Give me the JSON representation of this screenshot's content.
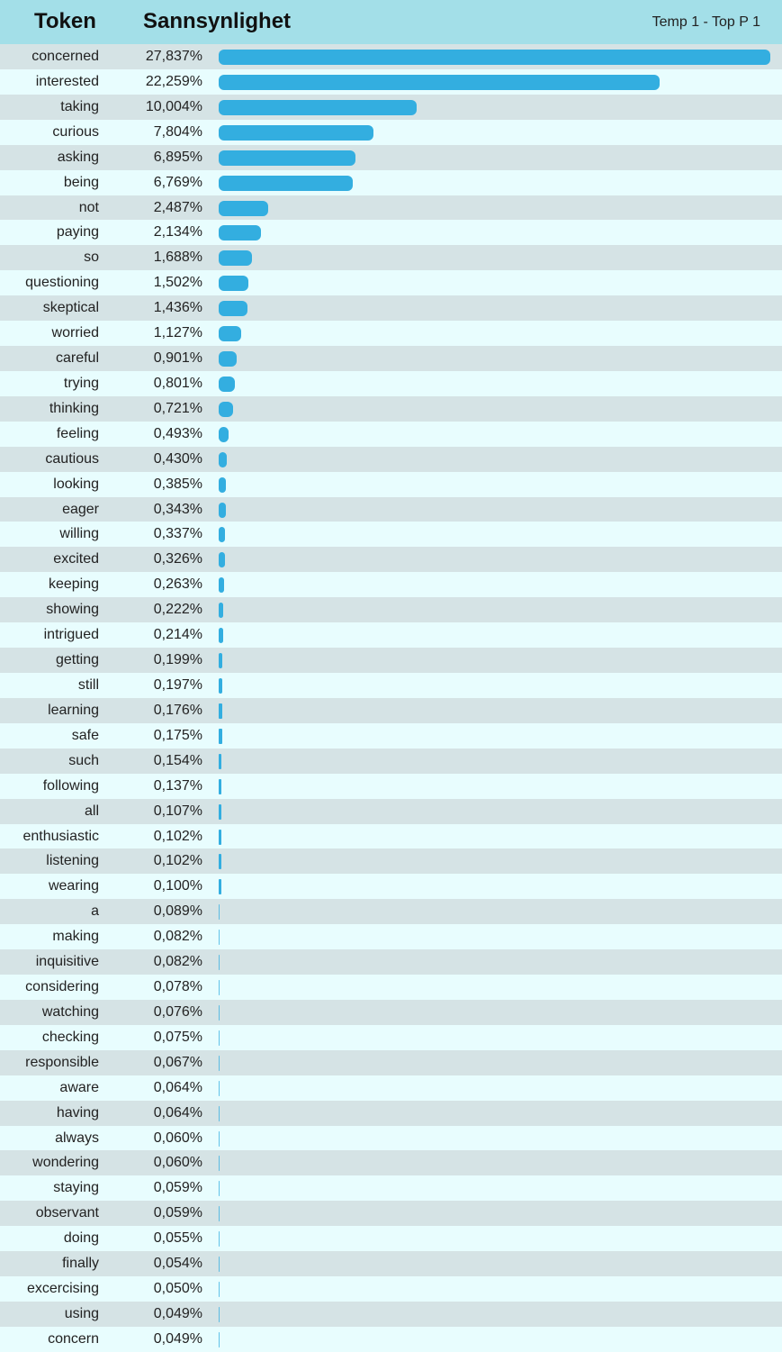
{
  "header": {
    "token_label": "Token",
    "prob_label": "Sannsynlighet",
    "settings": "Temp 1 - Top P 1"
  },
  "colors": {
    "header_bg": "#a3dfe8",
    "row_odd": "#d5e3e5",
    "row_even": "#e8fdfe",
    "bar": "#33aee0"
  },
  "chart_data": {
    "type": "bar",
    "orientation": "horizontal",
    "xlim": [
      0,
      27.837
    ],
    "rows": [
      {
        "token": "concerned",
        "label": "27,837%",
        "value": 27.837
      },
      {
        "token": "interested",
        "label": "22,259%",
        "value": 22.259
      },
      {
        "token": "taking",
        "label": "10,004%",
        "value": 10.004
      },
      {
        "token": "curious",
        "label": "7,804%",
        "value": 7.804
      },
      {
        "token": "asking",
        "label": "6,895%",
        "value": 6.895
      },
      {
        "token": "being",
        "label": "6,769%",
        "value": 6.769
      },
      {
        "token": "not",
        "label": "2,487%",
        "value": 2.487
      },
      {
        "token": "paying",
        "label": "2,134%",
        "value": 2.134
      },
      {
        "token": "so",
        "label": "1,688%",
        "value": 1.688
      },
      {
        "token": "questioning",
        "label": "1,502%",
        "value": 1.502
      },
      {
        "token": "skeptical",
        "label": "1,436%",
        "value": 1.436
      },
      {
        "token": "worried",
        "label": "1,127%",
        "value": 1.127
      },
      {
        "token": "careful",
        "label": "0,901%",
        "value": 0.901
      },
      {
        "token": "trying",
        "label": "0,801%",
        "value": 0.801
      },
      {
        "token": "thinking",
        "label": "0,721%",
        "value": 0.721
      },
      {
        "token": "feeling",
        "label": "0,493%",
        "value": 0.493
      },
      {
        "token": "cautious",
        "label": "0,430%",
        "value": 0.43
      },
      {
        "token": "looking",
        "label": "0,385%",
        "value": 0.385
      },
      {
        "token": "eager",
        "label": "0,343%",
        "value": 0.343
      },
      {
        "token": "willing",
        "label": "0,337%",
        "value": 0.337
      },
      {
        "token": "excited",
        "label": "0,326%",
        "value": 0.326
      },
      {
        "token": "keeping",
        "label": "0,263%",
        "value": 0.263
      },
      {
        "token": "showing",
        "label": "0,222%",
        "value": 0.222
      },
      {
        "token": "intrigued",
        "label": "0,214%",
        "value": 0.214
      },
      {
        "token": "getting",
        "label": "0,199%",
        "value": 0.199
      },
      {
        "token": "still",
        "label": "0,197%",
        "value": 0.197
      },
      {
        "token": "learning",
        "label": "0,176%",
        "value": 0.176
      },
      {
        "token": "safe",
        "label": "0,175%",
        "value": 0.175
      },
      {
        "token": "such",
        "label": "0,154%",
        "value": 0.154
      },
      {
        "token": "following",
        "label": "0,137%",
        "value": 0.137
      },
      {
        "token": "all",
        "label": "0,107%",
        "value": 0.107
      },
      {
        "token": "enthusiastic",
        "label": "0,102%",
        "value": 0.102
      },
      {
        "token": "listening",
        "label": "0,102%",
        "value": 0.102
      },
      {
        "token": "wearing",
        "label": "0,100%",
        "value": 0.1
      },
      {
        "token": "a",
        "label": "0,089%",
        "value": 0.089
      },
      {
        "token": "making",
        "label": "0,082%",
        "value": 0.082
      },
      {
        "token": "inquisitive",
        "label": "0,082%",
        "value": 0.082
      },
      {
        "token": "considering",
        "label": "0,078%",
        "value": 0.078
      },
      {
        "token": "watching",
        "label": "0,076%",
        "value": 0.076
      },
      {
        "token": "checking",
        "label": "0,075%",
        "value": 0.075
      },
      {
        "token": "responsible",
        "label": "0,067%",
        "value": 0.067
      },
      {
        "token": "aware",
        "label": "0,064%",
        "value": 0.064
      },
      {
        "token": "having",
        "label": "0,064%",
        "value": 0.064
      },
      {
        "token": "always",
        "label": "0,060%",
        "value": 0.06
      },
      {
        "token": "wondering",
        "label": "0,060%",
        "value": 0.06
      },
      {
        "token": "staying",
        "label": "0,059%",
        "value": 0.059
      },
      {
        "token": "observant",
        "label": "0,059%",
        "value": 0.059
      },
      {
        "token": "doing",
        "label": "0,055%",
        "value": 0.055
      },
      {
        "token": "finally",
        "label": "0,054%",
        "value": 0.054
      },
      {
        "token": "excercising",
        "label": "0,050%",
        "value": 0.05
      },
      {
        "token": "using",
        "label": "0,049%",
        "value": 0.049
      },
      {
        "token": "concern",
        "label": "0,049%",
        "value": 0.049
      }
    ]
  }
}
